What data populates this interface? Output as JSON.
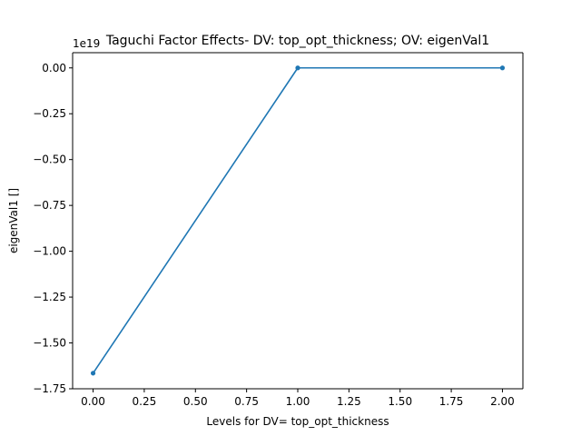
{
  "chart_data": {
    "type": "line",
    "title": "Taguchi Factor Effects- DV: top_opt_thickness; OV: eigenVal1",
    "xlabel": "Levels for DV= top_opt_thickness",
    "ylabel": "eigenVal1 []",
    "offset_label": "1e19",
    "xlim": [
      -0.1,
      2.1
    ],
    "ylim": [
      -1.75,
      0.083
    ],
    "x_ticks": [
      0.0,
      0.25,
      0.5,
      0.75,
      1.0,
      1.25,
      1.5,
      1.75,
      2.0
    ],
    "x_tick_labels": [
      "0.00",
      "0.25",
      "0.50",
      "0.75",
      "1.00",
      "1.25",
      "1.50",
      "1.75",
      "2.00"
    ],
    "y_ticks": [
      0.0,
      -0.25,
      -0.5,
      -0.75,
      -1.0,
      -1.25,
      -1.5,
      -1.75
    ],
    "y_tick_labels": [
      "0.00",
      "−0.25",
      "−0.50",
      "−0.75",
      "−1.00",
      "−1.25",
      "−1.50",
      "−1.75"
    ],
    "grid": false,
    "series": [
      {
        "color": "#1f77b4",
        "x": [
          0,
          1,
          2
        ],
        "y": [
          -1.665,
          0.0,
          0.0
        ]
      }
    ]
  }
}
